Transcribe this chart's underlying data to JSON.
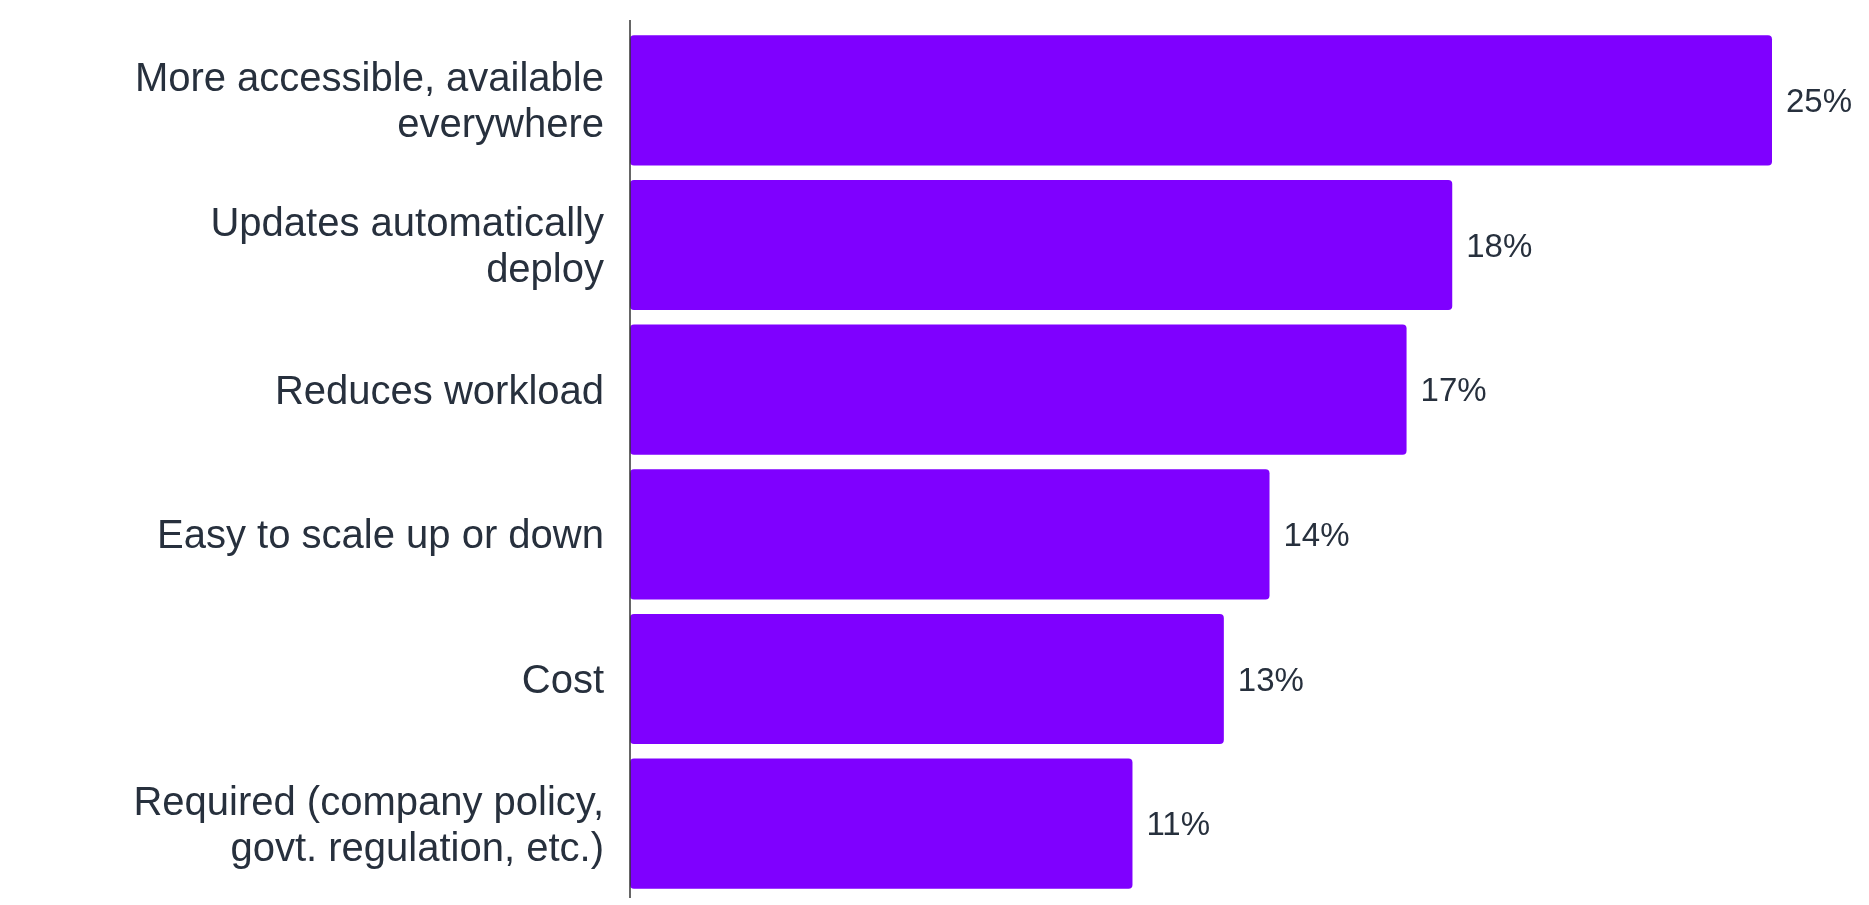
{
  "chart_data": {
    "type": "bar",
    "orientation": "horizontal",
    "categories": [
      "More accessible, available everywhere",
      "Updates automatically deploy",
      "Reduces workload",
      "Easy to scale up or down",
      "Cost",
      "Required (company policy, govt. regulation, etc.)"
    ],
    "values": [
      25,
      18,
      17,
      14,
      13,
      11
    ],
    "value_labels": [
      "25%",
      "18%",
      "17%",
      "14%",
      "13%",
      "11%"
    ],
    "color": "#7f00ff"
  }
}
